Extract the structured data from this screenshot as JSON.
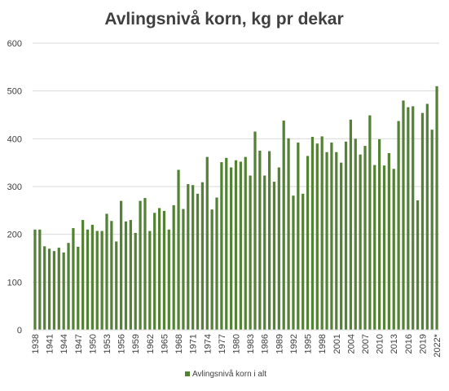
{
  "chart_data": {
    "type": "bar",
    "title": "Avlingsnivå korn, kg pr dekar",
    "xlabel": "",
    "ylabel": "",
    "ylim": [
      0,
      600
    ],
    "yticks": [
      "0",
      "100",
      "200",
      "300",
      "400",
      "500",
      "600"
    ],
    "grid": true,
    "legend_position": "bottom",
    "colors": {
      "bar": "#548235",
      "grid": "#d9d9d9",
      "text": "#404040"
    },
    "categories": [
      "1938",
      "1939",
      "1940",
      "1941",
      "1942",
      "1943",
      "1944",
      "1945",
      "1946",
      "1947",
      "1948",
      "1949",
      "1950",
      "1951",
      "1952",
      "1953",
      "1954",
      "1955",
      "1956",
      "1957",
      "1958",
      "1959",
      "1960",
      "1961",
      "1962",
      "1963",
      "1964",
      "1965",
      "1966",
      "1967",
      "1968",
      "1969",
      "1970",
      "1971",
      "1972",
      "1973",
      "1974",
      "1975",
      "1976",
      "1977",
      "1978",
      "1979",
      "1980",
      "1981",
      "1982",
      "1983",
      "1984",
      "1985",
      "1986",
      "1987",
      "1988",
      "1989",
      "1990",
      "1991",
      "1992",
      "1993",
      "1994",
      "1995",
      "1996",
      "1997",
      "1998",
      "1999",
      "2000",
      "2001",
      "2002",
      "2003",
      "2004",
      "2005",
      "2006",
      "2007",
      "2008",
      "2009",
      "2010",
      "2011",
      "2012",
      "2013",
      "2014",
      "2015",
      "2016",
      "2017",
      "2018",
      "2019",
      "2020",
      "2021",
      "2022*"
    ],
    "xtick_labels": [
      "1938",
      "1941",
      "1944",
      "1947",
      "1950",
      "1953",
      "1956",
      "1959",
      "1962",
      "1965",
      "1968",
      "1971",
      "1974",
      "1977",
      "1980",
      "1983",
      "1986",
      "1989",
      "1992",
      "1995",
      "1998",
      "2001",
      "2004",
      "2007",
      "2010",
      "2013",
      "2016",
      "2019",
      "2022*"
    ],
    "series": [
      {
        "name": "Avlingsnivå korn i alt",
        "values": [
          210,
          210,
          175,
          170,
          165,
          172,
          162,
          182,
          213,
          174,
          230,
          210,
          220,
          207,
          207,
          243,
          228,
          185,
          270,
          227,
          230,
          203,
          270,
          276,
          207,
          245,
          255,
          249,
          210,
          261,
          335,
          253,
          305,
          303,
          285,
          309,
          362,
          252,
          277,
          351,
          360,
          340,
          355,
          352,
          362,
          323,
          415,
          375,
          323,
          374,
          310,
          340,
          438,
          401,
          281,
          392,
          285,
          364,
          404,
          390,
          405,
          372,
          392,
          372,
          350,
          394,
          440,
          400,
          367,
          385,
          449,
          345,
          399,
          344,
          370,
          337,
          437,
          480,
          466,
          468,
          271,
          454,
          473,
          419,
          510
        ]
      }
    ]
  }
}
